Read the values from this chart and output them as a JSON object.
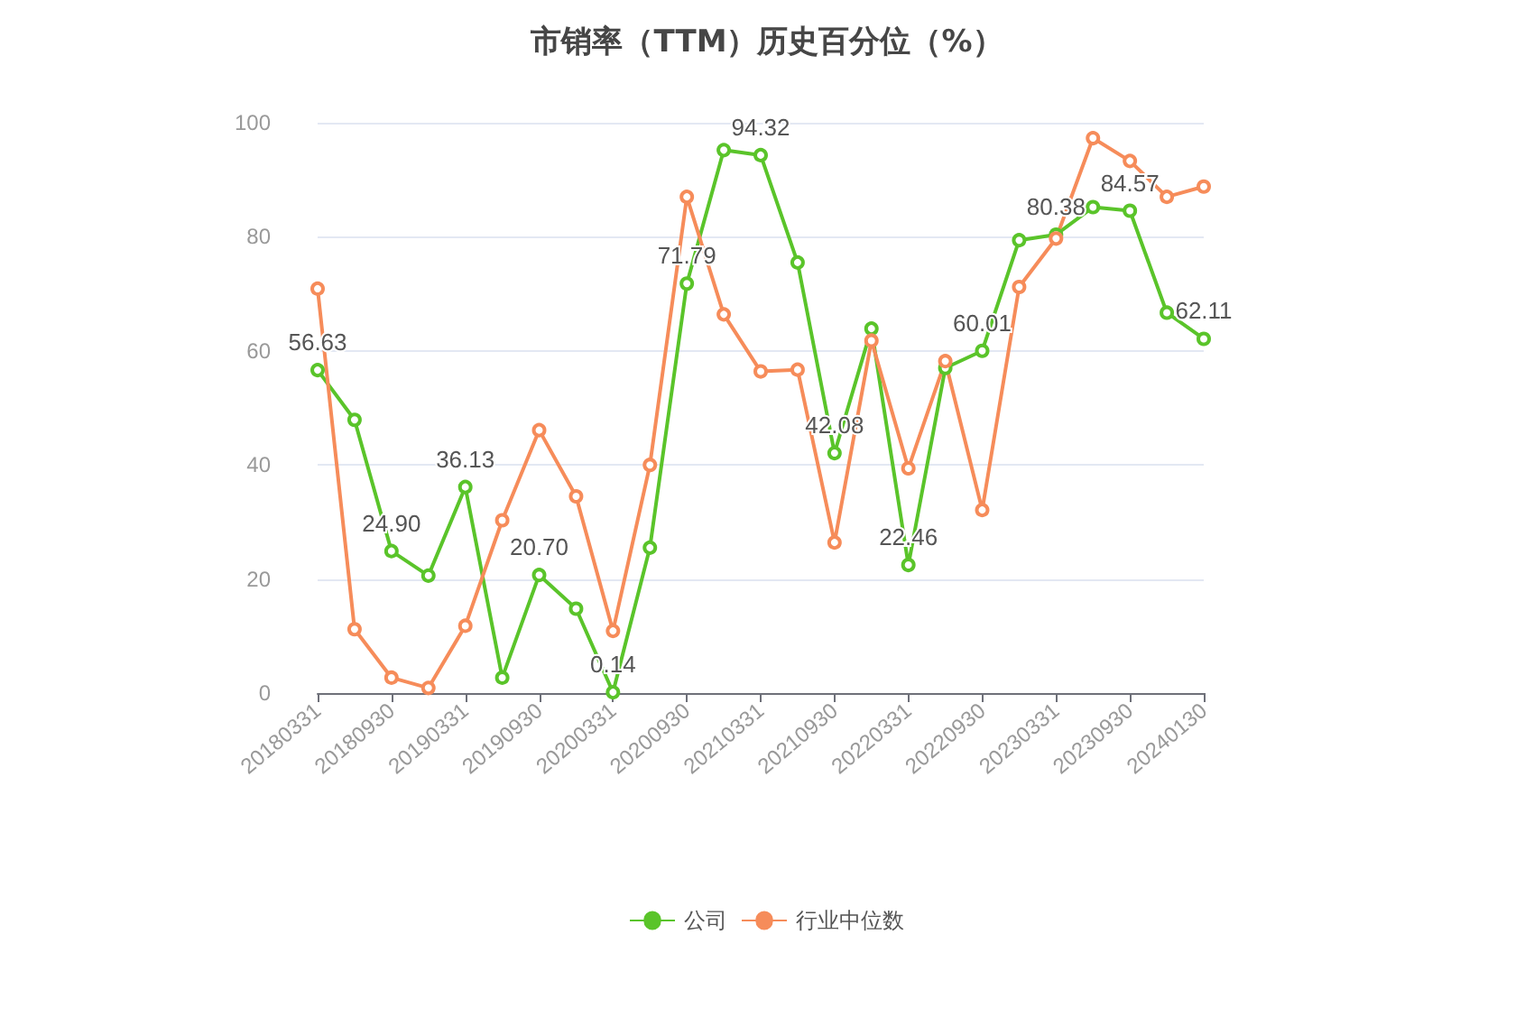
{
  "chart_data": {
    "type": "line",
    "title": "市销率（TTM）历史百分位（%）",
    "categories": [
      "20180331",
      null,
      "20180930",
      null,
      "20190331",
      null,
      "20190930",
      null,
      "20200331",
      null,
      "20200930",
      null,
      "20210331",
      null,
      "20210930",
      null,
      "20220331",
      null,
      "20220930",
      null,
      "20230331",
      null,
      "20230930",
      null,
      "20240130"
    ],
    "series": [
      {
        "name": "公司",
        "color": "#5ac42a",
        "values": [
          56.63,
          47.9,
          24.9,
          20.6,
          36.13,
          2.7,
          20.7,
          14.8,
          0.14,
          25.5,
          71.79,
          95.2,
          94.32,
          75.5,
          42.08,
          63.9,
          22.46,
          57,
          60.01,
          79.4,
          80.38,
          85.2,
          84.57,
          66.7,
          62.11
        ],
        "value_labels": [
          "56.63",
          null,
          "24.90",
          null,
          "36.13",
          null,
          "20.70",
          null,
          "0.14",
          null,
          "71.79",
          null,
          "94.32",
          null,
          "42.08",
          null,
          "22.46",
          null,
          "60.01",
          null,
          "80.38",
          null,
          "84.57",
          null,
          "62.11"
        ]
      },
      {
        "name": "行业中位数",
        "color": "#f68c5a",
        "values": [
          70.9,
          11.2,
          2.7,
          0.9,
          11.8,
          30.3,
          46.1,
          34.5,
          10.9,
          40,
          87,
          66.4,
          56.4,
          56.7,
          26.4,
          61.8,
          39.4,
          58.2,
          32.1,
          71.2,
          79.7,
          97.3,
          93.3,
          87,
          88.8
        ]
      }
    ],
    "ylim": [
      0,
      100
    ],
    "yticks": [
      0,
      20,
      40,
      60,
      80,
      100
    ],
    "grid": "y",
    "legend": "bottom",
    "marker": "circle",
    "line_style": "solid"
  }
}
